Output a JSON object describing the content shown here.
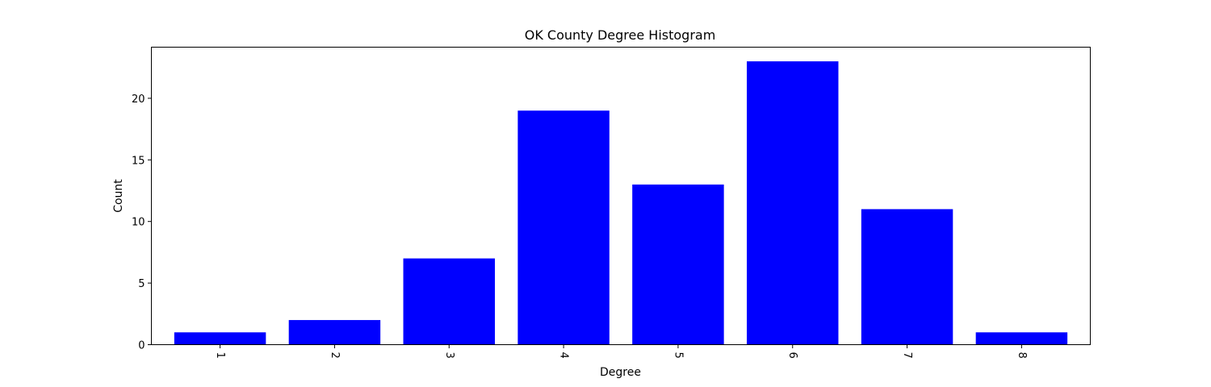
{
  "chart_data": {
    "type": "bar",
    "title": "OK County Degree Histogram",
    "xlabel": "Degree",
    "ylabel": "Count",
    "categories": [
      "1",
      "2",
      "3",
      "4",
      "5",
      "6",
      "7",
      "8"
    ],
    "values": [
      1,
      2,
      7,
      19,
      13,
      23,
      11,
      1
    ],
    "ylim": [
      0,
      24.15
    ],
    "yticks": [
      0,
      5,
      10,
      15,
      20
    ],
    "x_tick_rotation": -90,
    "bar_color": "#0000ff",
    "axis_color": "#000000",
    "grid": false,
    "legend": "none"
  }
}
